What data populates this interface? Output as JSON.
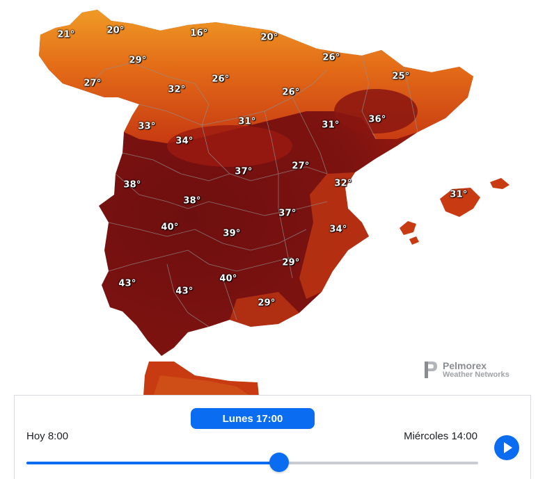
{
  "map": {
    "colors": {
      "hot_dark": "#6e0f0f",
      "hot": "#9c1a10",
      "warm": "#c73a12",
      "mild": "#e36a17",
      "cool": "#ef9a25",
      "borders": "#8f8f8f"
    },
    "temperatures": [
      {
        "id": "t1",
        "label": "21°"
      },
      {
        "id": "t2",
        "label": "20°"
      },
      {
        "id": "t3",
        "label": "16°"
      },
      {
        "id": "t4",
        "label": "20°"
      },
      {
        "id": "t5",
        "label": "29°"
      },
      {
        "id": "t6",
        "label": "26°"
      },
      {
        "id": "t7",
        "label": "27°"
      },
      {
        "id": "t8",
        "label": "32°"
      },
      {
        "id": "t9",
        "label": "26°"
      },
      {
        "id": "t10",
        "label": "26°"
      },
      {
        "id": "t11",
        "label": "25°"
      },
      {
        "id": "t12",
        "label": "33°"
      },
      {
        "id": "t13",
        "label": "31°"
      },
      {
        "id": "t14",
        "label": "31°"
      },
      {
        "id": "t15",
        "label": "36°"
      },
      {
        "id": "t16",
        "label": "34°"
      },
      {
        "id": "t17",
        "label": "37°"
      },
      {
        "id": "t18",
        "label": "27°"
      },
      {
        "id": "t19",
        "label": "38°"
      },
      {
        "id": "t20",
        "label": "32°"
      },
      {
        "id": "t21",
        "label": "31°"
      },
      {
        "id": "t22",
        "label": "38°"
      },
      {
        "id": "t23",
        "label": "37°"
      },
      {
        "id": "t24",
        "label": "40°"
      },
      {
        "id": "t25",
        "label": "39°"
      },
      {
        "id": "t26",
        "label": "34°"
      },
      {
        "id": "t27",
        "label": "29°"
      },
      {
        "id": "t28",
        "label": "43°"
      },
      {
        "id": "t29",
        "label": "40°"
      },
      {
        "id": "t30",
        "label": "43°"
      },
      {
        "id": "t31",
        "label": "29°"
      }
    ],
    "attribution": {
      "name": "Pelmorex",
      "subtitle": "Weather Networks"
    }
  },
  "timeline": {
    "current_label": "Lunes 17:00",
    "start_label": "Hoy 8:00",
    "end_label": "Miércoles 14:00",
    "progress": 0.56,
    "accent_color": "#0a6cf0",
    "play_icon": "play-icon"
  }
}
